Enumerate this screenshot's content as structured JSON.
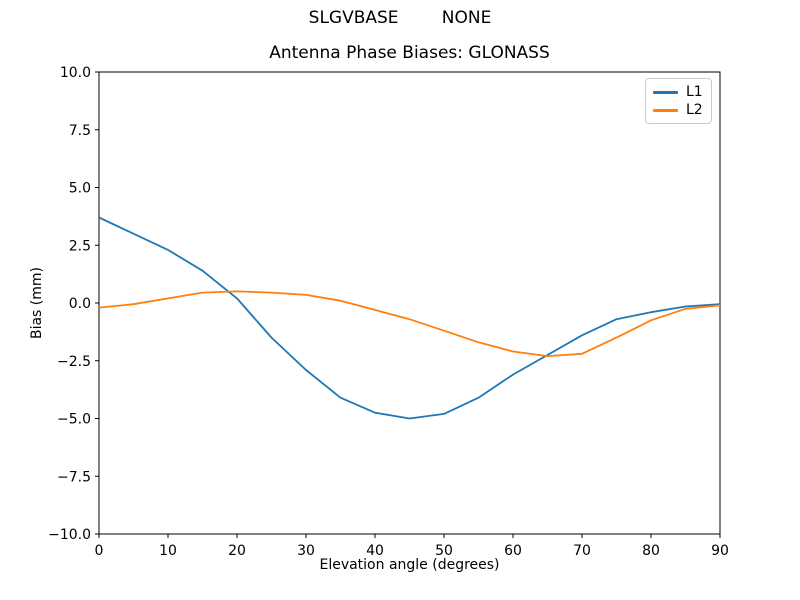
{
  "chart_data": {
    "type": "line",
    "suptitle": "SLGVBASE        NONE",
    "title": "Antenna Phase Biases: GLONASS",
    "xlabel": "Elevation angle (degrees)",
    "ylabel": "Bias (mm)",
    "xlim": [
      0,
      90
    ],
    "ylim": [
      -10,
      10
    ],
    "grid": false,
    "legend_position": "upper right",
    "xtick_values": [
      0,
      10,
      20,
      30,
      40,
      50,
      60,
      70,
      80,
      90
    ],
    "xtick_labels": [
      "0",
      "10",
      "20",
      "30",
      "40",
      "50",
      "60",
      "70",
      "80",
      "90"
    ],
    "ytick_values": [
      10,
      7.5,
      5,
      2.5,
      0,
      -2.5,
      -5,
      -7.5,
      -10
    ],
    "ytick_labels": [
      "10.0",
      "7.5",
      "5.0",
      "2.5",
      "0.0",
      "−2.5",
      "−5.0",
      "−7.5",
      "−10.0"
    ],
    "x": [
      0,
      5,
      10,
      15,
      20,
      25,
      30,
      35,
      40,
      45,
      50,
      55,
      60,
      65,
      70,
      75,
      80,
      85,
      90
    ],
    "series": [
      {
        "name": "L1",
        "color": "#1f77b4",
        "values": [
          3.7,
          3.0,
          2.3,
          1.4,
          0.2,
          -1.5,
          -2.9,
          -4.1,
          -4.75,
          -5.0,
          -4.8,
          -4.1,
          -3.1,
          -2.25,
          -1.4,
          -0.7,
          -0.4,
          -0.15,
          -0.05
        ]
      },
      {
        "name": "L2",
        "color": "#ff7f0e",
        "values": [
          -0.2,
          -0.05,
          0.2,
          0.45,
          0.5,
          0.45,
          0.35,
          0.1,
          -0.3,
          -0.7,
          -1.2,
          -1.7,
          -2.1,
          -2.3,
          -2.2,
          -1.5,
          -0.75,
          -0.25,
          -0.1
        ]
      }
    ]
  }
}
